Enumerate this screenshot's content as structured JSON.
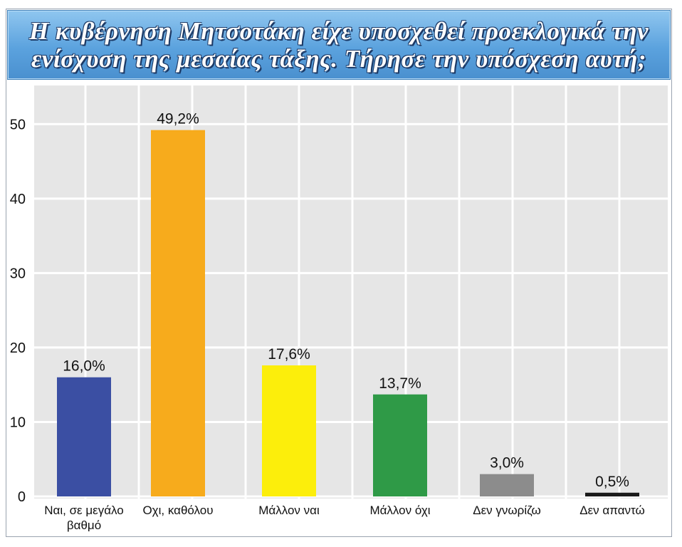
{
  "title": "Η κυβέρνηση Μητσοτάκη είχε υποσχεθεί προεκλογικά την ενίσχυση της μεσαίας τάξης. Τήρησε την υπόσχεση αυτή;",
  "title_line1": "Η κυβέρνηση Μητσοτάκη είχε υποσχεθεί προεκλογικά την",
  "title_line2": "ενίσχυση της μεσαίας τάξης. Τήρησε την υπόσχεση αυτή;",
  "colors": {
    "title_bg": "#5ba2de",
    "plot_bg": "#e6e6e6",
    "bars": [
      "#3b4fa3",
      "#f7ab1c",
      "#fcee0b",
      "#2f9a47",
      "#8c8c8c",
      "#1a1a1a"
    ]
  },
  "chart_data": {
    "type": "bar",
    "title": "Η κυβέρνηση Μητσοτάκη είχε υποσχεθεί προεκλογικά την ενίσχυση της μεσαίας τάξης. Τήρησε την υπόσχεση αυτή;",
    "categories": [
      "Ναι, σε μεγάλο βαθμό",
      "Οχι, καθόλου",
      "Μάλλον ναι",
      "Μάλλον όχι",
      "Δεν γνωρίζω",
      "Δεν απαντώ"
    ],
    "category_lines": [
      [
        "Ναι, σε μεγάλο",
        "βαθμό"
      ],
      [
        "Οχι, καθόλου"
      ],
      [
        "Μάλλον ναι"
      ],
      [
        "Μάλλον όχι"
      ],
      [
        "Δεν γνωρίζω"
      ],
      [
        "Δεν απαντώ"
      ]
    ],
    "values": [
      16.0,
      49.2,
      17.6,
      13.7,
      3.0,
      0.5
    ],
    "data_labels": [
      "16,0%",
      "49,2%",
      "17,6%",
      "13,7%",
      "3,0%",
      "0,5%"
    ],
    "yticks": [
      "0",
      "10",
      "20",
      "30",
      "40",
      "50"
    ],
    "ylim": [
      0,
      55
    ],
    "grid": true,
    "xlabel": "",
    "ylabel": ""
  }
}
